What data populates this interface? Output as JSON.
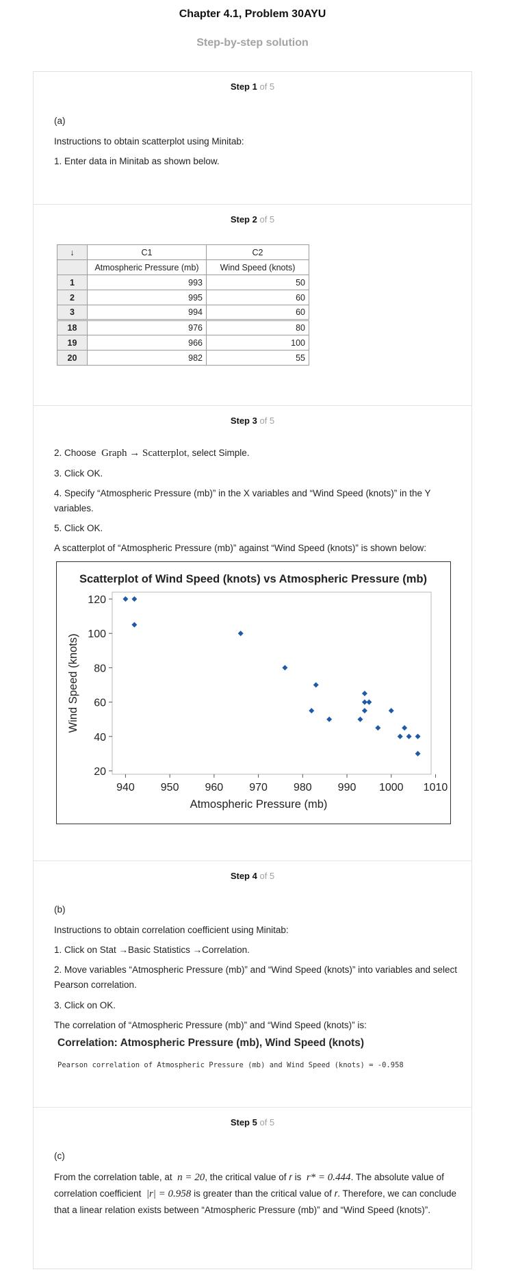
{
  "header": {
    "chapter": "Chapter 4.1, Problem 30AYU",
    "subtitle": "Step-by-step solution"
  },
  "steps": [
    {
      "label": "Step 1",
      "of": "of 5"
    },
    {
      "label": "Step 2",
      "of": "of 5"
    },
    {
      "label": "Step 3",
      "of": "of 5"
    },
    {
      "label": "Step 4",
      "of": "of 5"
    },
    {
      "label": "Step 5",
      "of": "of 5"
    }
  ],
  "step1": {
    "part": "(a)",
    "line1": "Instructions to obtain scatterplot using Minitab:",
    "line2": "1. Enter data in Minitab as shown below."
  },
  "worksheet": {
    "arrow": "↓",
    "col_ids": [
      "C1",
      "C2"
    ],
    "col_names": [
      "Atmospheric Pressure (mb)",
      "Wind Speed (knots)"
    ],
    "rows": [
      {
        "row": "1",
        "c1": "993",
        "c2": "50"
      },
      {
        "row": "2",
        "c1": "995",
        "c2": "60"
      },
      {
        "row": "3",
        "c1": "994",
        "c2": "60"
      },
      {
        "row": "18",
        "c1": "976",
        "c2": "80"
      },
      {
        "row": "19",
        "c1": "966",
        "c2": "100"
      },
      {
        "row": "20",
        "c1": "982",
        "c2": "55"
      }
    ]
  },
  "step3": {
    "choose_pre": "2. Choose",
    "choose_math": "Graph → Scatterplot",
    "choose_post": ", select Simple.",
    "line3": "3. Click OK.",
    "line4": "4. Specify “Atmospheric Pressure (mb)” in the X variables and “Wind Speed (knots)” in the Y variables.",
    "line5": "5. Click OK.",
    "line6": "A scatterplot of “Atmospheric Pressure (mb)” against “Wind Speed (knots)” is shown below:"
  },
  "chart_data": {
    "type": "scatter",
    "title": "Scatterplot of Wind Speed (knots) vs Atmospheric Pressure (mb)",
    "xlabel": "Atmospheric Pressure (mb)",
    "ylabel": "Wind Speed (knots)",
    "xlim": [
      937,
      1009
    ],
    "ylim": [
      18,
      124
    ],
    "xticks": [
      940,
      950,
      960,
      970,
      980,
      990,
      1000,
      1010
    ],
    "yticks": [
      20,
      40,
      60,
      80,
      100,
      120
    ],
    "grid": false,
    "marker_color": "#1f5aa6",
    "points": [
      {
        "x": 940,
        "y": 120
      },
      {
        "x": 942,
        "y": 120
      },
      {
        "x": 942,
        "y": 105
      },
      {
        "x": 966,
        "y": 100
      },
      {
        "x": 976,
        "y": 80
      },
      {
        "x": 982,
        "y": 55
      },
      {
        "x": 983,
        "y": 70
      },
      {
        "x": 986,
        "y": 50
      },
      {
        "x": 993,
        "y": 50
      },
      {
        "x": 994,
        "y": 65
      },
      {
        "x": 994,
        "y": 60
      },
      {
        "x": 994,
        "y": 55
      },
      {
        "x": 995,
        "y": 60
      },
      {
        "x": 997,
        "y": 45
      },
      {
        "x": 1000,
        "y": 55
      },
      {
        "x": 1002,
        "y": 40
      },
      {
        "x": 1003,
        "y": 45
      },
      {
        "x": 1004,
        "y": 40
      },
      {
        "x": 1006,
        "y": 40
      },
      {
        "x": 1006,
        "y": 30
      }
    ]
  },
  "step4": {
    "part": "(b)",
    "line1": "Instructions to obtain correlation coefficient using Minitab:",
    "line2": "1. Click on Stat →Basic Statistics →Correlation.",
    "line3": "2. Move variables “Atmospheric Pressure (mb)” and “Wind Speed (knots)” into variables and select Pearson correlation.",
    "line4": "3. Click on OK.",
    "line5": "The correlation of “Atmospheric Pressure (mb)” and “Wind Speed (knots)” is:",
    "output_title": "Correlation: Atmospheric Pressure (mb), Wind Speed (knots)",
    "output_text": "Pearson correlation of Atmospheric Pressure (mb) and Wind Speed (knots) = -0.958"
  },
  "step5": {
    "part": "(c)",
    "t1": "From the correlation table, at",
    "m1": "n = 20",
    "t2": ", the critical value of",
    "v1": "r",
    "t3": "is",
    "m2": "r* = 0.444",
    "t4": ". The absolute value of correlation coefficient",
    "m3": "|r| = 0.958",
    "t5": "is greater than the critical value of",
    "v2": "r",
    "t6": ". Therefore, we can conclude that a linear relation exists between “Atmospheric Pressure (mb)” and “Wind Speed (knots)”."
  }
}
